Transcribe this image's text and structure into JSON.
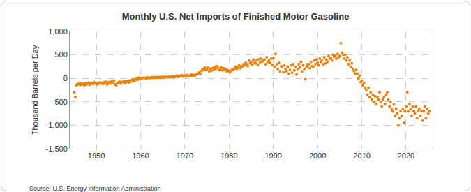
{
  "chart_data": {
    "type": "scatter",
    "title": "Monthly U.S. Net Imports of Finished Motor Gasoline",
    "y_label": "Thousand Barrels per Day",
    "source": "Source: U.S. Energy Information Administration",
    "color": "#e8830c",
    "marker": "circle",
    "grid": true,
    "xlim": [
      1944,
      2026
    ],
    "xticks": [
      1950,
      1960,
      1970,
      1980,
      1990,
      2000,
      2010,
      2020
    ],
    "ylim": [
      -1500,
      1000
    ],
    "yticks": [
      {
        "value": -1500,
        "label": "-1,500"
      },
      {
        "value": -1000,
        "label": "-1,000"
      },
      -500,
      0,
      500,
      {
        "value": 1000,
        "label": "1,000"
      }
    ],
    "x": [
      1945,
      1945.25,
      1945.5,
      1945.75,
      1946,
      1946.25,
      1946.5,
      1946.75,
      1947,
      1947.25,
      1947.5,
      1947.75,
      1948,
      1948.25,
      1948.5,
      1948.75,
      1949,
      1949.25,
      1949.5,
      1949.75,
      1950,
      1950.25,
      1950.5,
      1950.75,
      1951,
      1951.25,
      1951.5,
      1951.75,
      1952,
      1952.25,
      1952.5,
      1952.75,
      1953,
      1953.25,
      1953.5,
      1953.75,
      1954,
      1954.25,
      1954.5,
      1954.75,
      1955,
      1955.25,
      1955.5,
      1955.75,
      1956,
      1956.25,
      1956.5,
      1956.75,
      1957,
      1957.25,
      1957.5,
      1957.75,
      1958,
      1958.25,
      1958.5,
      1958.75,
      1959,
      1959.25,
      1959.5,
      1959.75,
      1960,
      1960.25,
      1960.5,
      1960.75,
      1961,
      1961.25,
      1961.5,
      1961.75,
      1962,
      1962.25,
      1962.5,
      1962.75,
      1963,
      1963.25,
      1963.5,
      1963.75,
      1964,
      1964.25,
      1964.5,
      1964.75,
      1965,
      1965.25,
      1965.5,
      1965.75,
      1966,
      1966.25,
      1966.5,
      1966.75,
      1967,
      1967.25,
      1967.5,
      1967.75,
      1968,
      1968.25,
      1968.5,
      1968.75,
      1969,
      1969.25,
      1969.5,
      1969.75,
      1970,
      1970.25,
      1970.5,
      1970.75,
      1971,
      1971.25,
      1971.5,
      1971.75,
      1972,
      1972.25,
      1972.5,
      1972.75,
      1973,
      1973.25,
      1973.5,
      1973.75,
      1974,
      1974.25,
      1974.5,
      1974.75,
      1975,
      1975.25,
      1975.5,
      1975.75,
      1976,
      1976.25,
      1976.5,
      1976.75,
      1977,
      1977.25,
      1977.5,
      1977.75,
      1978,
      1978.25,
      1978.5,
      1978.75,
      1979,
      1979.25,
      1979.5,
      1979.75,
      1980,
      1980.25,
      1980.5,
      1980.75,
      1981,
      1981.25,
      1981.5,
      1981.75,
      1982,
      1982.25,
      1982.5,
      1982.75,
      1983,
      1983.25,
      1983.5,
      1983.75,
      1984,
      1984.25,
      1984.5,
      1984.75,
      1985,
      1985.25,
      1985.5,
      1985.75,
      1986,
      1986.25,
      1986.5,
      1986.75,
      1987,
      1987.25,
      1987.5,
      1987.75,
      1988,
      1988.25,
      1988.5,
      1988.75,
      1989,
      1989.25,
      1989.5,
      1989.75,
      1990,
      1990.25,
      1990.5,
      1990.75,
      1991,
      1991.25,
      1991.5,
      1991.75,
      1992,
      1992.25,
      1992.5,
      1992.75,
      1993,
      1993.25,
      1993.5,
      1993.75,
      1994,
      1994.25,
      1994.5,
      1994.75,
      1995,
      1995.25,
      1995.5,
      1995.75,
      1996,
      1996.25,
      1996.5,
      1996.75,
      1997,
      1997.25,
      1997.5,
      1997.75,
      1998,
      1998.25,
      1998.5,
      1998.75,
      1999,
      1999.25,
      1999.5,
      1999.75,
      2000,
      2000.25,
      2000.5,
      2000.75,
      2001,
      2001.25,
      2001.5,
      2001.75,
      2002,
      2002.25,
      2002.5,
      2002.75,
      2003,
      2003.25,
      2003.5,
      2003.75,
      2004,
      2004.25,
      2004.5,
      2004.75,
      2005,
      2005.25,
      2005.5,
      2005.75,
      2006,
      2006.25,
      2006.5,
      2006.75,
      2007,
      2007.25,
      2007.5,
      2007.75,
      2008,
      2008.25,
      2008.5,
      2008.75,
      2009,
      2009.25,
      2009.5,
      2009.75,
      2010,
      2010.25,
      2010.5,
      2010.75,
      2011,
      2011.25,
      2011.5,
      2011.75,
      2012,
      2012.25,
      2012.5,
      2012.75,
      2013,
      2013.25,
      2013.5,
      2013.75,
      2014,
      2014.25,
      2014.5,
      2014.75,
      2015,
      2015.25,
      2015.5,
      2015.75,
      2016,
      2016.25,
      2016.5,
      2016.75,
      2017,
      2017.25,
      2017.5,
      2017.75,
      2018,
      2018.25,
      2018.5,
      2018.75,
      2019,
      2019.25,
      2019.5,
      2019.75,
      2020,
      2020.25,
      2020.5,
      2020.75,
      2021,
      2021.25,
      2021.5,
      2021.75,
      2022,
      2022.25,
      2022.5,
      2022.75,
      2023,
      2023.25,
      2023.5,
      2023.75,
      2024,
      2024.25,
      2024.5,
      2024.75,
      2025,
      2025.25
    ],
    "values": [
      -300,
      -400,
      -150,
      -120,
      -130,
      -100,
      -140,
      -110,
      -120,
      -150,
      -100,
      -130,
      -110,
      -90,
      -140,
      -100,
      -100,
      -120,
      -80,
      -110,
      -100,
      -130,
      -90,
      -110,
      -90,
      -110,
      -120,
      -80,
      -100,
      -70,
      -130,
      -90,
      -80,
      -110,
      -60,
      -90,
      -50,
      -130,
      -150,
      -100,
      -90,
      -70,
      -110,
      -80,
      -80,
      -60,
      -100,
      -70,
      -60,
      -90,
      -50,
      -70,
      -40,
      -20,
      -60,
      -30,
      -10,
      -30,
      10,
      -20,
      0,
      -10,
      10,
      5,
      10,
      0,
      20,
      5,
      15,
      5,
      25,
      10,
      20,
      10,
      30,
      15,
      20,
      25,
      10,
      30,
      25,
      15,
      35,
      20,
      30,
      20,
      40,
      25,
      30,
      45,
      25,
      35,
      40,
      60,
      30,
      50,
      50,
      70,
      40,
      60,
      60,
      40,
      70,
      50,
      60,
      50,
      80,
      55,
      70,
      60,
      90,
      80,
      100,
      130,
      90,
      160,
      200,
      180,
      230,
      190,
      180,
      230,
      150,
      200,
      160,
      220,
      190,
      240,
      200,
      260,
      230,
      180,
      190,
      230,
      170,
      210,
      180,
      200,
      150,
      170,
      150,
      130,
      170,
      190,
      180,
      210,
      250,
      200,
      230,
      280,
      220,
      260,
      250,
      300,
      280,
      330,
      300,
      260,
      380,
      320,
      350,
      290,
      400,
      330,
      320,
      380,
      290,
      410,
      340,
      420,
      360,
      380,
      400,
      300,
      450,
      350,
      380,
      330,
      420,
      290,
      430,
      250,
      520,
      300,
      200,
      330,
      150,
      260,
      250,
      130,
      280,
      200,
      150,
      250,
      100,
      180,
      280,
      120,
      300,
      170,
      250,
      80,
      200,
      300,
      230,
      350,
      150,
      280,
      200,
      -20,
      250,
      300,
      300,
      220,
      350,
      260,
      250,
      380,
      300,
      400,
      330,
      280,
      420,
      350,
      380,
      300,
      450,
      320,
      400,
      350,
      480,
      420,
      430,
      380,
      500,
      460,
      480,
      420,
      520,
      450,
      470,
      750,
      550,
      500,
      420,
      500,
      380,
      450,
      300,
      380,
      250,
      320,
      200,
      150,
      100,
      180,
      100,
      0,
      50,
      -80,
      -50,
      -150,
      -100,
      -200,
      -250,
      -350,
      -200,
      -400,
      -300,
      -450,
      -350,
      -500,
      -380,
      -550,
      -400,
      -450,
      -300,
      -500,
      -600,
      -450,
      -400,
      -550,
      -350,
      -300,
      -450,
      -600,
      -500,
      -650,
      -700,
      -550,
      -800,
      -650,
      -750,
      -1000,
      -850,
      -700,
      -800,
      -650,
      -950,
      -700,
      -600,
      -300,
      -700,
      -550,
      -650,
      -800,
      -600,
      -700,
      -750,
      -600,
      -850,
      -700,
      -650,
      -800,
      -700,
      -900,
      -700,
      -600,
      -850,
      -650,
      -750,
      -700
    ]
  }
}
